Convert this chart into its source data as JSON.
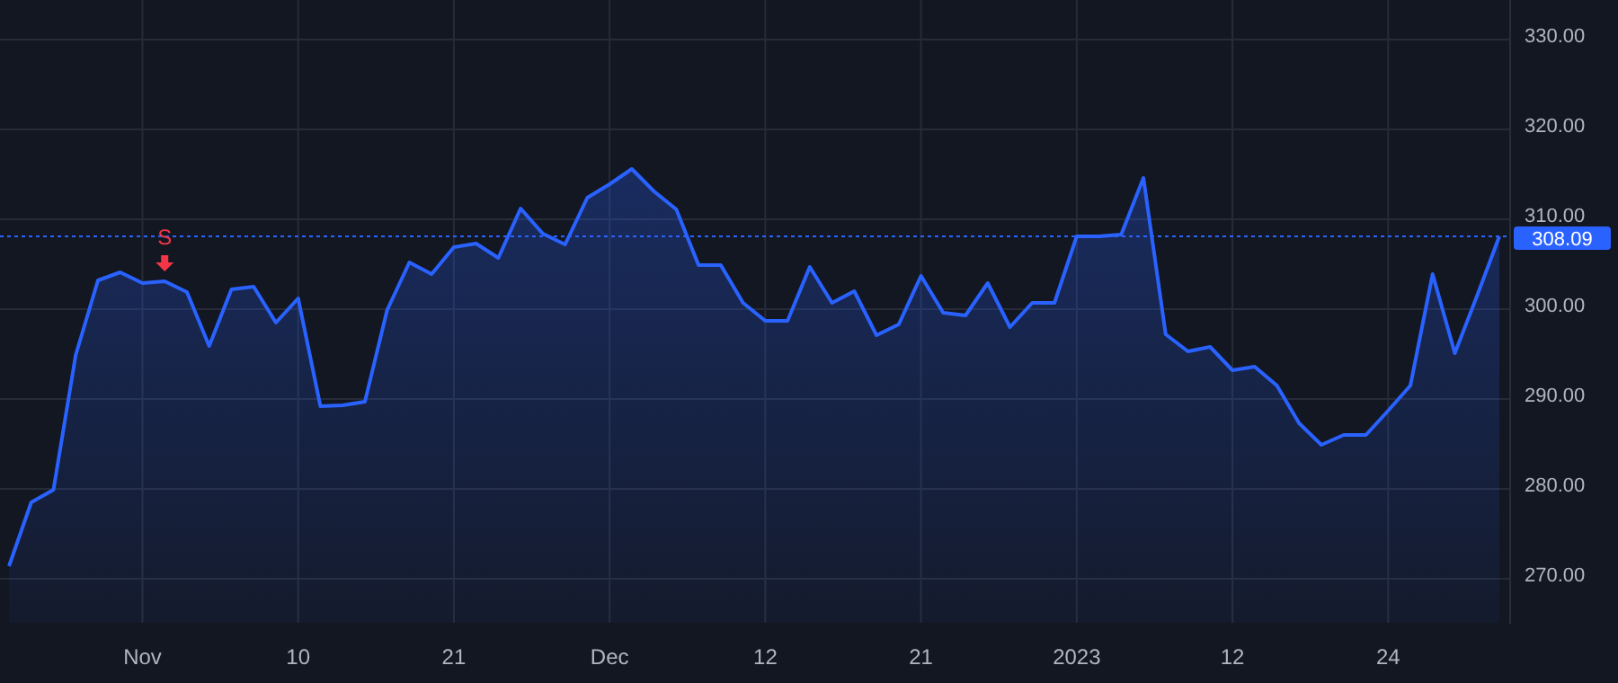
{
  "chart_data": {
    "type": "area",
    "categories": [
      null,
      null,
      null,
      null,
      null,
      null,
      "Nov",
      null,
      null,
      null,
      null,
      null,
      null,
      "10",
      null,
      null,
      null,
      null,
      null,
      null,
      "21",
      null,
      null,
      null,
      null,
      null,
      null,
      "Dec",
      null,
      null,
      null,
      null,
      null,
      null,
      "12",
      null,
      null,
      null,
      null,
      null,
      null,
      "21",
      null,
      null,
      null,
      null,
      null,
      null,
      "2023",
      null,
      null,
      null,
      null,
      null,
      null,
      "12",
      null,
      null,
      null,
      null,
      null,
      null,
      "24",
      null,
      null,
      null,
      null,
      null
    ],
    "series": [
      {
        "color": "#2962ff",
        "values": [
          271.4,
          278.5,
          279.9,
          294.9,
          303.2,
          304.1,
          302.9,
          303.1,
          301.9,
          295.9,
          302.2,
          302.5,
          298.5,
          301.2,
          289.2,
          289.3,
          289.7,
          299.9,
          305.2,
          303.9,
          306.9,
          307.3,
          305.7,
          311.2,
          308.4,
          307.2,
          312.4,
          313.9,
          315.6,
          313.1,
          311.1,
          304.9,
          304.9,
          300.7,
          298.7,
          298.7,
          304.7,
          300.7,
          302.0,
          297.1,
          298.3,
          303.7,
          299.6,
          299.3,
          302.9,
          298.0,
          300.7,
          300.7,
          308.1,
          308.1,
          308.3,
          314.6,
          297.2,
          295.3,
          295.8,
          293.2,
          293.6,
          291.5,
          287.3,
          284.9,
          286.0,
          286.0,
          288.7,
          291.5,
          303.9,
          295.1,
          301.5,
          308.1
        ]
      }
    ],
    "ylim": [
      265,
      334.4
    ],
    "yticks": [
      {
        "value": 270,
        "label": "270.00"
      },
      {
        "value": 280,
        "label": "280.00"
      },
      {
        "value": 290,
        "label": "290.00"
      },
      {
        "value": 300,
        "label": "300.00"
      },
      {
        "value": 310,
        "label": "310.00"
      },
      {
        "value": 320,
        "label": "320.00"
      },
      {
        "value": 330,
        "label": "330.00"
      }
    ],
    "grid": true,
    "ref_lines": [
      {
        "axis": "y",
        "value": 308.09,
        "label": "308.09",
        "color": "#2962ff",
        "line_style": "dotted"
      }
    ],
    "annotations": [
      "S"
    ]
  }
}
